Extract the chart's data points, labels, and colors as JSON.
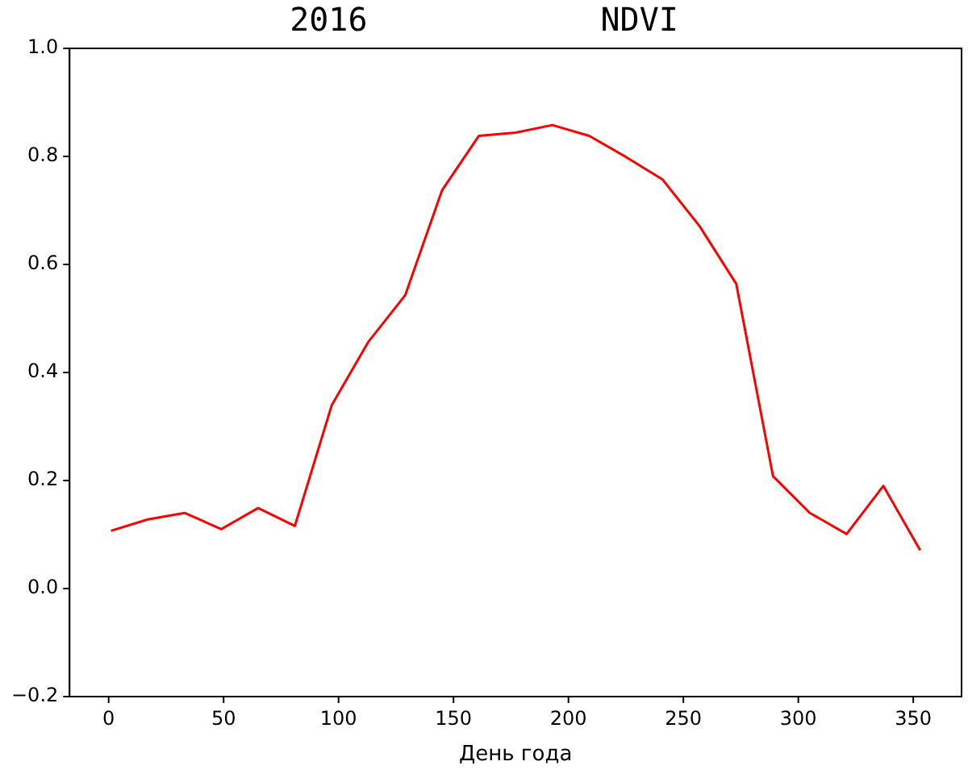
{
  "chart_data": {
    "type": "line",
    "title": "2016            NDVI",
    "xlabel": "День года",
    "x": [
      1,
      17,
      33,
      49,
      65,
      81,
      97,
      113,
      129,
      145,
      161,
      177,
      193,
      209,
      225,
      241,
      257,
      273,
      289,
      305,
      321,
      337,
      353
    ],
    "series": [
      {
        "color": "#ff0000",
        "values": [
          0.107,
          0.128,
          0.14,
          0.11,
          0.149,
          0.116,
          0.339,
          0.457,
          0.543,
          0.737,
          0.838,
          0.844,
          0.858,
          0.838,
          0.799,
          0.757,
          0.671,
          0.564,
          0.208,
          0.14,
          0.101,
          0.19,
          0.071
        ]
      }
    ],
    "xlim": [
      -17,
      371
    ],
    "xticks": [
      0,
      50,
      100,
      150,
      200,
      250,
      300,
      350
    ],
    "ylim": [
      -0.2,
      1.0
    ],
    "yticks": [
      {
        "value": -0.2,
        "label": "−0.2"
      },
      {
        "value": 0,
        "label": "0.0"
      },
      {
        "value": 0.2,
        "label": "0.2"
      },
      {
        "value": 0.4,
        "label": "0.4"
      },
      {
        "value": 0.6,
        "label": "0.6"
      },
      {
        "value": 0.8,
        "label": "0.8"
      },
      {
        "value": 1.0,
        "label": "1.0"
      }
    ],
    "grid": false,
    "legend": false,
    "marker": "none",
    "line_style": "solid"
  }
}
